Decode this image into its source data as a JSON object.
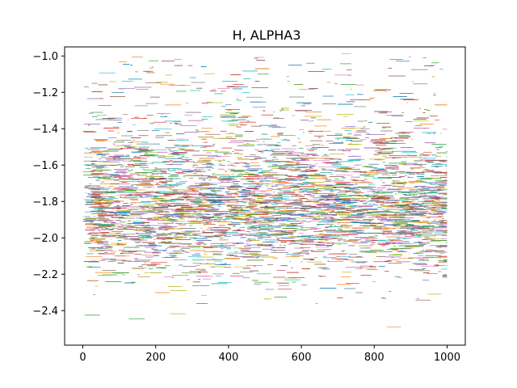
{
  "chart_data": {
    "type": "scatter",
    "title": "H, ALPHA3",
    "xlabel": "",
    "ylabel": "",
    "xlim": [
      -50,
      1050
    ],
    "ylim": [
      -2.59,
      -0.95
    ],
    "x_ticks": [
      0,
      200,
      400,
      600,
      800,
      1000
    ],
    "x_tick_labels": [
      "0",
      "200",
      "400",
      "600",
      "800",
      "1000"
    ],
    "y_ticks": [
      -2.4,
      -2.2,
      -2.0,
      -1.8,
      -1.6,
      -1.4,
      -1.2,
      -1.0
    ],
    "y_tick_labels": [
      "−2.4",
      "−2.2",
      "−2.0",
      "−1.8",
      "−1.6",
      "−1.4",
      "−1.2",
      "−1.0"
    ],
    "grid": false,
    "legend": "none",
    "series_count_estimate": "many (hundreds of overlapping short horizontal trace segments)",
    "x_range_of_data": [
      0,
      1000
    ],
    "y_distribution": {
      "core_band": [
        -2.25,
        -1.5
      ],
      "densest_band": [
        -2.05,
        -1.7
      ],
      "sparse_upper": [
        -1.5,
        -0.98
      ],
      "sparse_lower": [
        -2.5,
        -2.25
      ],
      "peak_density_y": -1.85
    },
    "series_colors": [
      "#1f77b4",
      "#ff7f0e",
      "#2ca02c",
      "#d62728",
      "#9467bd",
      "#8c564b",
      "#e377c2",
      "#7f7f7f",
      "#bcbd22",
      "#17becf"
    ]
  }
}
